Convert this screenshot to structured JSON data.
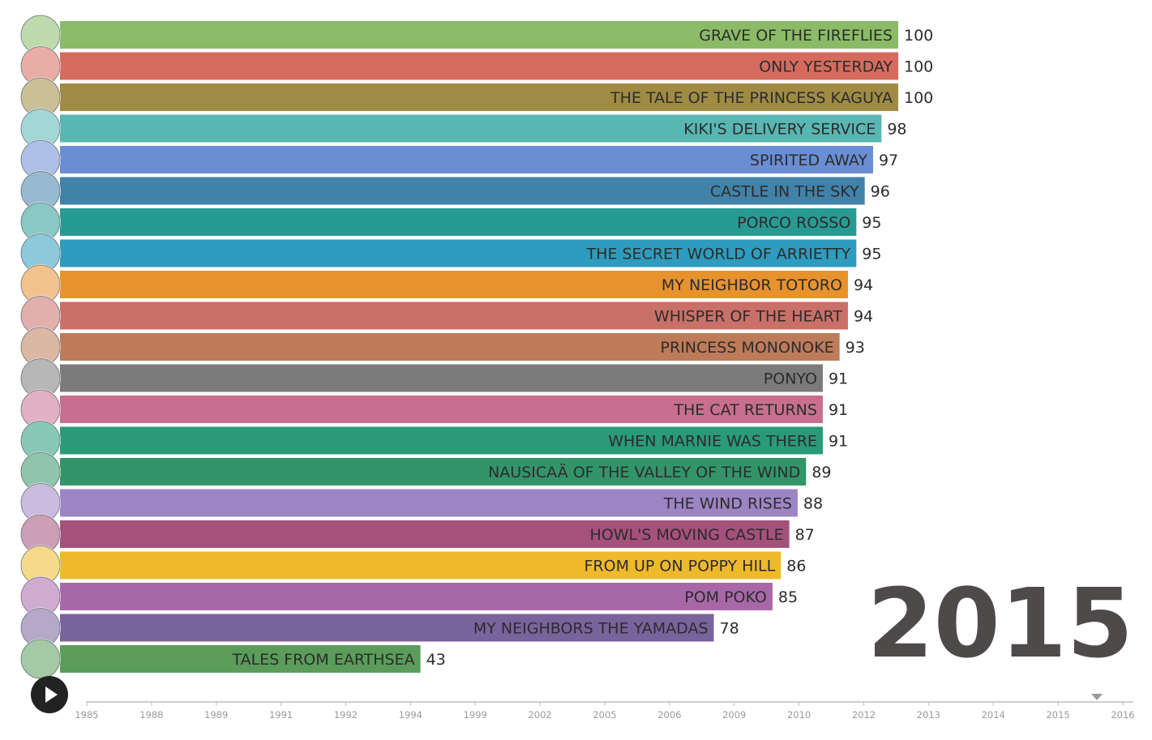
{
  "chart_data": {
    "type": "bar",
    "orientation": "horizontal",
    "year": "2015",
    "xlim": [
      0,
      100
    ],
    "categories": [
      "GRAVE OF THE FIREFLIES",
      "ONLY YESTERDAY",
      "THE TALE OF THE PRINCESS KAGUYA",
      "KIKI'S DELIVERY SERVICE",
      "SPIRITED AWAY",
      "CASTLE IN THE SKY",
      "PORCO ROSSO",
      "THE SECRET WORLD OF ARRIETTY",
      "MY NEIGHBOR TOTORO",
      "WHISPER OF THE HEART",
      "PRINCESS MONONOKE",
      "PONYO",
      "THE CAT RETURNS",
      "WHEN MARNIE WAS THERE",
      "NAUSICAÄ OF THE VALLEY OF THE WIND",
      "THE WIND RISES",
      "HOWL'S MOVING CASTLE",
      "FROM UP ON POPPY HILL",
      "POM POKO",
      "MY NEIGHBORS THE YAMADAS",
      "TALES FROM EARTHSEA"
    ],
    "values": [
      100,
      100,
      100,
      98,
      97,
      96,
      95,
      95,
      94,
      94,
      93,
      91,
      91,
      91,
      89,
      88,
      87,
      86,
      85,
      78,
      43
    ],
    "colors": [
      "#8bbb67",
      "#d66b5d",
      "#a08b44",
      "#58b6b3",
      "#6a8ed4",
      "#4182a9",
      "#289a94",
      "#2e9cbe",
      "#e8922e",
      "#c97068",
      "#bd7b5a",
      "#7b7b7b",
      "#c86f8f",
      "#2a9a78",
      "#339469",
      "#9d85c5",
      "#a4517c",
      "#efb92c",
      "#a868a8",
      "#79639c",
      "#5b9c5a"
    ],
    "timeline_ticks": [
      "1985",
      "1988",
      "1989",
      "1991",
      "1992",
      "1994",
      "1999",
      "2002",
      "2005",
      "2006",
      "2009",
      "2010",
      "2012",
      "2013",
      "2014",
      "2015",
      "2016"
    ],
    "timeline_current": "2015"
  },
  "icons": {
    "play": "play-icon",
    "timeline_marker": "triangle-down-icon",
    "poster": "movie-poster-icon"
  }
}
